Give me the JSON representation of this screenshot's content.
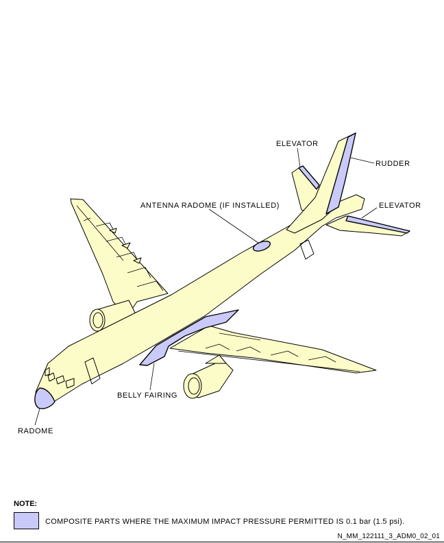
{
  "colors": {
    "body_fill": "#fcfcc8",
    "composite_fill": "#c9caf9",
    "outline": "#000000"
  },
  "labels": {
    "elevator_top": "ELEVATOR",
    "rudder": "RUDDER",
    "elevator_right": "ELEVATOR",
    "antenna_radome": "ANTENNA RADOME (IF INSTALLED)",
    "belly_fairing": "BELLY FAIRING",
    "radome": "RADOME"
  },
  "note": {
    "title": "NOTE:",
    "text": "COMPOSITE PARTS WHERE THE MAXIMUM IMPACT PRESSURE PERMITTED IS 0.1 bar (1.5 psi)."
  },
  "reference": "N_MM_122111_3_ADM0_02_01"
}
